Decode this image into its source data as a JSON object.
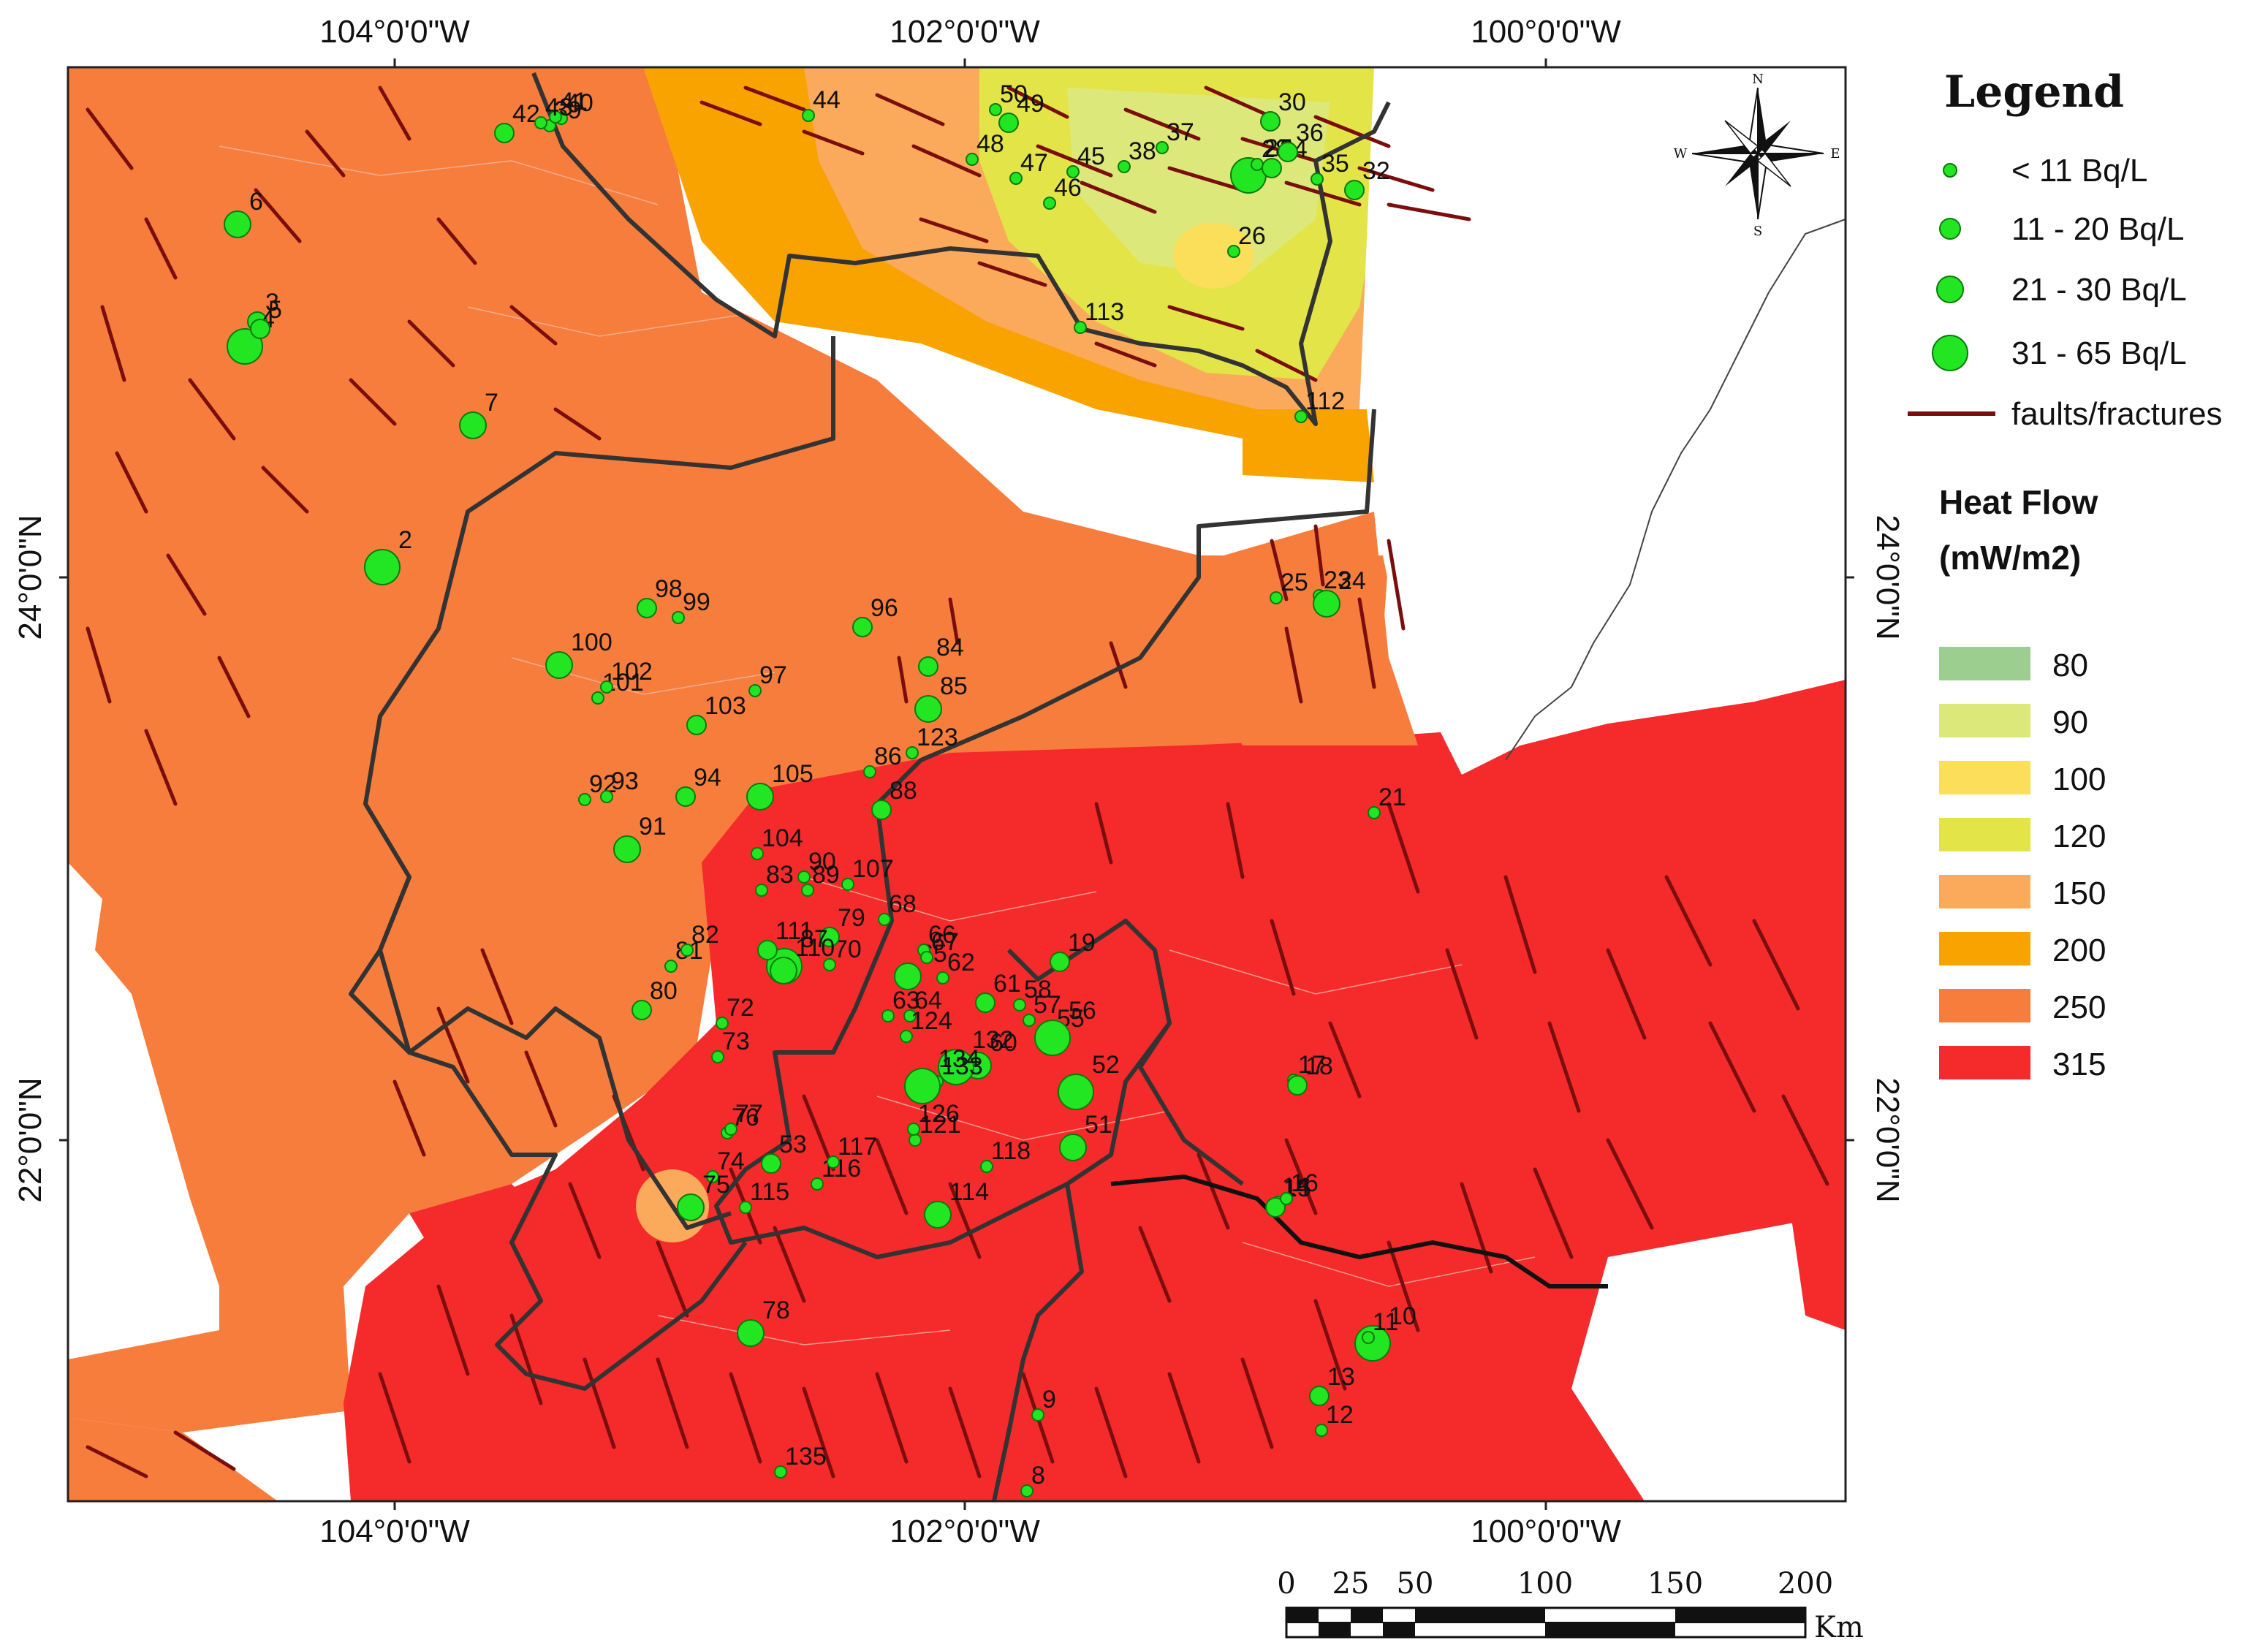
{
  "graticule": {
    "top": [
      "104°0'0\"W",
      "102°0'0\"W",
      "100°0'0\"W"
    ],
    "bottom": [
      "104°0'0\"W",
      "102°0'0\"W",
      "100°0'0\"W"
    ],
    "left": [
      "24°0'0\"N",
      "22°0'0\"N"
    ],
    "right": [
      "24°0'0\"N",
      "22°0'0\"N"
    ]
  },
  "legend": {
    "title": "Legend",
    "concentration_classes": [
      "< 11 Bq/L",
      "11 - 20 Bq/L",
      "21 - 30 Bq/L",
      "31 - 65 Bq/L"
    ],
    "faults_label": "faults/fractures",
    "heat_flow_title_line1": "Heat Flow",
    "heat_flow_title_line2": "(mW/m2)",
    "heat_flow_classes": [
      {
        "value": "80",
        "color": "#9ccf8f"
      },
      {
        "value": "90",
        "color": "#dde87a"
      },
      {
        "value": "100",
        "color": "#fbde5a"
      },
      {
        "value": "120",
        "color": "#e3e447"
      },
      {
        "value": "150",
        "color": "#fba95a"
      },
      {
        "value": "200",
        "color": "#f9a300"
      },
      {
        "value": "250",
        "color": "#f77d3c"
      },
      {
        "value": "315",
        "color": "#f52a2a"
      }
    ]
  },
  "north_arrow": {
    "n": "N",
    "s": "S",
    "e": "E",
    "w": "W",
    "icon": "compass-rose-icon"
  },
  "scale_bar": {
    "ticks": [
      "0",
      "25",
      "50",
      "100",
      "150",
      "200"
    ],
    "unit": "Km"
  },
  "sites": [
    {
      "id": "2",
      "size": 4
    },
    {
      "id": "3",
      "size": 2
    },
    {
      "id": "4",
      "size": 4
    },
    {
      "id": "5",
      "size": 2
    },
    {
      "id": "6",
      "size": 3
    },
    {
      "id": "7",
      "size": 3
    },
    {
      "id": "8",
      "size": 1
    },
    {
      "id": "9",
      "size": 1
    },
    {
      "id": "10",
      "size": 4
    },
    {
      "id": "11",
      "size": 1
    },
    {
      "id": "12",
      "size": 1
    },
    {
      "id": "13",
      "size": 2
    },
    {
      "id": "14",
      "size": 1
    },
    {
      "id": "15",
      "size": 2
    },
    {
      "id": "16",
      "size": 1
    },
    {
      "id": "17",
      "size": 1
    },
    {
      "id": "18",
      "size": 2
    },
    {
      "id": "19",
      "size": 2
    },
    {
      "id": "21",
      "size": 1
    },
    {
      "id": "23",
      "size": 1
    },
    {
      "id": "24",
      "size": 3
    },
    {
      "id": "25",
      "size": 1
    },
    {
      "id": "26",
      "size": 1
    },
    {
      "id": "27",
      "size": 4
    },
    {
      "id": "28",
      "size": 1
    },
    {
      "id": "30",
      "size": 2
    },
    {
      "id": "32",
      "size": 2
    },
    {
      "id": "34",
      "size": 2
    },
    {
      "id": "35",
      "size": 1
    },
    {
      "id": "36",
      "size": 2
    },
    {
      "id": "37",
      "size": 1
    },
    {
      "id": "38",
      "size": 1
    },
    {
      "id": "39",
      "size": 1
    },
    {
      "id": "40",
      "size": 1
    },
    {
      "id": "41",
      "size": 1
    },
    {
      "id": "42",
      "size": 2
    },
    {
      "id": "43",
      "size": 1
    },
    {
      "id": "44",
      "size": 1
    },
    {
      "id": "45",
      "size": 1
    },
    {
      "id": "46",
      "size": 1
    },
    {
      "id": "47",
      "size": 1
    },
    {
      "id": "48",
      "size": 1
    },
    {
      "id": "49",
      "size": 2
    },
    {
      "id": "50",
      "size": 1
    },
    {
      "id": "51",
      "size": 3
    },
    {
      "id": "52",
      "size": 4
    },
    {
      "id": "53",
      "size": 2
    },
    {
      "id": "55",
      "size": 2
    },
    {
      "id": "56",
      "size": 4
    },
    {
      "id": "57",
      "size": 1
    },
    {
      "id": "58",
      "size": 1
    },
    {
      "id": "60",
      "size": 3
    },
    {
      "id": "61",
      "size": 2
    },
    {
      "id": "62",
      "size": 1
    },
    {
      "id": "63",
      "size": 1
    },
    {
      "id": "64",
      "size": 1
    },
    {
      "id": "65",
      "size": 3
    },
    {
      "id": "66",
      "size": 1
    },
    {
      "id": "67",
      "size": 1
    },
    {
      "id": "68",
      "size": 1
    },
    {
      "id": "70",
      "size": 1
    },
    {
      "id": "72",
      "size": 1
    },
    {
      "id": "73",
      "size": 1
    },
    {
      "id": "74",
      "size": 1
    },
    {
      "id": "75",
      "size": 3
    },
    {
      "id": "76",
      "size": 1
    },
    {
      "id": "77",
      "size": 1
    },
    {
      "id": "78",
      "size": 3
    },
    {
      "id": "79",
      "size": 2
    },
    {
      "id": "80",
      "size": 2
    },
    {
      "id": "81",
      "size": 1
    },
    {
      "id": "82",
      "size": 1
    },
    {
      "id": "83",
      "size": 1
    },
    {
      "id": "84",
      "size": 2
    },
    {
      "id": "85",
      "size": 3
    },
    {
      "id": "86",
      "size": 1
    },
    {
      "id": "87",
      "size": 4
    },
    {
      "id": "88",
      "size": 2
    },
    {
      "id": "89",
      "size": 1
    },
    {
      "id": "90",
      "size": 1
    },
    {
      "id": "91",
      "size": 3
    },
    {
      "id": "92",
      "size": 1
    },
    {
      "id": "93",
      "size": 1
    },
    {
      "id": "94",
      "size": 2
    },
    {
      "id": "96",
      "size": 2
    },
    {
      "id": "97",
      "size": 1
    },
    {
      "id": "98",
      "size": 2
    },
    {
      "id": "99",
      "size": 1
    },
    {
      "id": "100",
      "size": 3
    },
    {
      "id": "101",
      "size": 1
    },
    {
      "id": "102",
      "size": 1
    },
    {
      "id": "103",
      "size": 2
    },
    {
      "id": "104",
      "size": 1
    },
    {
      "id": "105",
      "size": 3
    },
    {
      "id": "107",
      "size": 1
    },
    {
      "id": "110",
      "size": 3
    },
    {
      "id": "111",
      "size": 2
    },
    {
      "id": "112",
      "size": 1
    },
    {
      "id": "113",
      "size": 1
    },
    {
      "id": "114",
      "size": 3
    },
    {
      "id": "115",
      "size": 1
    },
    {
      "id": "116",
      "size": 1
    },
    {
      "id": "117",
      "size": 1
    },
    {
      "id": "118",
      "size": 1
    },
    {
      "id": "121",
      "size": 1
    },
    {
      "id": "123",
      "size": 1
    },
    {
      "id": "124",
      "size": 1
    },
    {
      "id": "126",
      "size": 1
    },
    {
      "id": "132",
      "size": 4
    },
    {
      "id": "133",
      "size": 1
    },
    {
      "id": "134",
      "size": 4
    },
    {
      "id": "135",
      "size": 1
    }
  ]
}
